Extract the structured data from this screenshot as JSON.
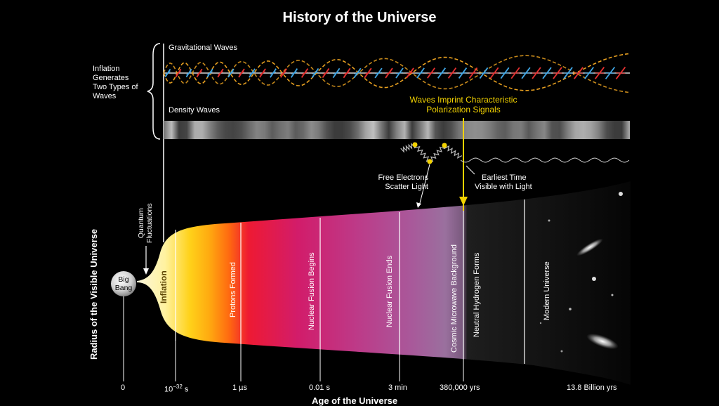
{
  "title": "History of the Universe",
  "inflation_note": [
    "Inflation",
    "Generates",
    "Two Types of",
    "Waves"
  ],
  "gravitational_waves_label": "Gravitational Waves",
  "density_waves_label": "Density Waves",
  "polarization_label": [
    "Waves Imprint Characteristic",
    "Polarization Signals"
  ],
  "free_electrons_label": [
    "Free Electrons",
    "Scatter Light"
  ],
  "earliest_time_label": [
    "Earliest Time",
    "Visible with Light"
  ],
  "quantum_label": [
    "Quantum",
    "Fluctuations"
  ],
  "big_bang_label": [
    "Big",
    "Bang"
  ],
  "y_axis_label": "Radius of the Visible Universe",
  "x_axis_label": "Age of the Universe",
  "eras": [
    "Inflation",
    "Protons Formed",
    "Nuclear Fusion Begins",
    "Nuclear Fusion Ends",
    "Cosmic Microwave Background",
    "Neutral Hydrogen Forms",
    "Modern Universe"
  ],
  "ticks": {
    "t0": "0",
    "t1_base": "10",
    "t1_exp": "−32",
    "t1_unit": " s",
    "t2": "1 µs",
    "t3": "0.01 s",
    "t4": "3 min",
    "t5": "380,000 yrs",
    "t6": "13.8 Billion yrs"
  },
  "colors": {
    "highlight": "#f2d200",
    "wave_orange": "#e8a020",
    "arrow_blue": "#3fa8e8",
    "arrow_red": "#e83030"
  }
}
